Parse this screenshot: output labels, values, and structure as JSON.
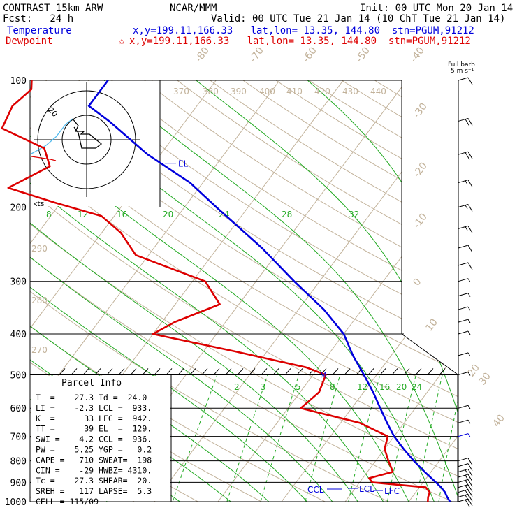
{
  "header": {
    "line1_left": "CONTRAST 15km ARW",
    "line1_mid": "NCAR/MMM",
    "line1_right": "Init: 00 UTC Mon 20 Jan 14",
    "line2_left": "Fcst:   24 h",
    "line2_right": "Valid: 00 UTC Tue 21 Jan 14 (10 ChT Tue 21 Jan 14)",
    "temp_label": "Temperature",
    "temp_info": "x,y=199.11,166.33   lat,lon= 13.35, 144.80  stn=PGUM,91212",
    "dew_label": "Dewpoint",
    "dew_marker": "✩",
    "dew_info": "x,y=199.11,166.33   lat,lon= 13.35, 144.80  stn=PGUM,91212"
  },
  "barb_header": {
    "line1": "Full barb",
    "line2": "5 m s⁻¹"
  },
  "hodograph": {
    "units": "kts",
    "ring_label": "20"
  },
  "parcel": {
    "title": "Parcel Info",
    "rows": [
      "T  =    27.3 Td =  24.0",
      "LI =    -2.3 LCL =  933.",
      "K  =      33 LFC =  942.",
      "TT =      39 EL  =  129.",
      "SWI =    4.2 CCL =  936.",
      "PW =    5.25 YGP =   0.2",
      "CAPE =   710 SWEAT=  198",
      "CIN =    -29 HWBZ= 4310.",
      "Tc =    27.3 SHEAR=  20.",
      "SREH =   117 LAPSE=  5.3",
      "CELL = 115/09"
    ]
  },
  "markers": {
    "el": "EL",
    "lcl": "LCL",
    "lfc": "LFC",
    "ccl": "CCL",
    "m": "M"
  },
  "chart_data": {
    "type": "line",
    "y_axis": "pressure (hPa), log scale",
    "ylim": [
      1000,
      100
    ],
    "pressure_ticks": [
      100,
      200,
      300,
      400,
      500,
      600,
      700,
      800,
      900,
      1000
    ],
    "isotherm_labels": [
      -80,
      -70,
      -60,
      -50,
      -40,
      -30,
      -20,
      -10,
      0,
      10,
      20,
      30,
      40
    ],
    "theta_labels": [
      370,
      380,
      390,
      400,
      410,
      420,
      430,
      440,
      290,
      280,
      270
    ],
    "mixing_ratio_labels_upper": [
      8,
      12,
      16,
      20,
      24,
      28,
      32
    ],
    "mixing_ratio_labels_lower": [
      2,
      3,
      5,
      8,
      12,
      16,
      20,
      24
    ],
    "series": [
      {
        "name": "Temperature",
        "color": "#0000dd",
        "points": [
          [
            1000,
            26.5
          ],
          [
            975,
            25.5
          ],
          [
            950,
            24.6
          ],
          [
            925,
            23.4
          ],
          [
            900,
            22.0
          ],
          [
            850,
            19.0
          ],
          [
            800,
            16.0
          ],
          [
            750,
            13.0
          ],
          [
            700,
            10.0
          ],
          [
            650,
            7.3
          ],
          [
            600,
            4.5
          ],
          [
            550,
            1.5
          ],
          [
            500,
            -2.0
          ],
          [
            450,
            -6.0
          ],
          [
            400,
            -10.0
          ],
          [
            350,
            -16.0
          ],
          [
            300,
            -24.0
          ],
          [
            250,
            -33.0
          ],
          [
            200,
            -45.0
          ],
          [
            175,
            -52.0
          ],
          [
            150,
            -62.0
          ],
          [
            125,
            -72.0
          ],
          [
            115,
            -77.0
          ],
          [
            100,
            -77.0
          ]
        ]
      },
      {
        "name": "Dewpoint",
        "color": "#dd0000",
        "points": [
          [
            1000,
            23.0
          ],
          [
            975,
            22.5
          ],
          [
            950,
            22.2
          ],
          [
            925,
            21.0
          ],
          [
            900,
            12.0
          ],
          [
            880,
            11.0
          ],
          [
            850,
            14.0
          ],
          [
            800,
            12.0
          ],
          [
            750,
            10.0
          ],
          [
            700,
            9.0
          ],
          [
            650,
            3.0
          ],
          [
            600,
            -8.0
          ],
          [
            550,
            -7.0
          ],
          [
            500,
            -8.0
          ],
          [
            480,
            -12.0
          ],
          [
            440,
            -25.0
          ],
          [
            400,
            -40.0
          ],
          [
            375,
            -38.0
          ],
          [
            340,
            -33.0
          ],
          [
            300,
            -38.0
          ],
          [
            260,
            -52.0
          ],
          [
            230,
            -57.0
          ],
          [
            210,
            -62.0
          ],
          [
            195,
            -71.0
          ],
          [
            180,
            -80.0
          ],
          [
            160,
            -76.0
          ],
          [
            145,
            -79.0
          ],
          [
            130,
            -88.0
          ],
          [
            115,
            -89.0
          ],
          [
            105,
            -88.0
          ],
          [
            100,
            -89.0
          ]
        ]
      }
    ],
    "wind_barbs": [
      {
        "p": 1000,
        "speed": 20
      },
      {
        "p": 975,
        "speed": 20
      },
      {
        "p": 950,
        "speed": 20
      },
      {
        "p": 925,
        "speed": 20
      },
      {
        "p": 900,
        "speed": 20
      },
      {
        "p": 875,
        "speed": 15
      },
      {
        "p": 850,
        "speed": 15
      },
      {
        "p": 825,
        "speed": 10
      },
      {
        "p": 800,
        "speed": 10
      },
      {
        "p": 700,
        "speed": 5
      },
      {
        "p": 650,
        "speed": 5
      },
      {
        "p": 600,
        "speed": 5
      },
      {
        "p": 500,
        "speed": 5
      },
      {
        "p": 450,
        "speed": 5
      },
      {
        "p": 400,
        "speed": 5
      },
      {
        "p": 375,
        "speed": 5
      },
      {
        "p": 350,
        "speed": 5
      },
      {
        "p": 325,
        "speed": 5
      },
      {
        "p": 300,
        "speed": 5
      },
      {
        "p": 275,
        "speed": 10
      },
      {
        "p": 250,
        "speed": 10
      },
      {
        "p": 225,
        "speed": 15
      },
      {
        "p": 200,
        "speed": 15
      },
      {
        "p": 175,
        "speed": 15
      },
      {
        "p": 150,
        "speed": 20
      },
      {
        "p": 125,
        "speed": 20
      },
      {
        "p": 100,
        "speed": 10
      }
    ]
  }
}
